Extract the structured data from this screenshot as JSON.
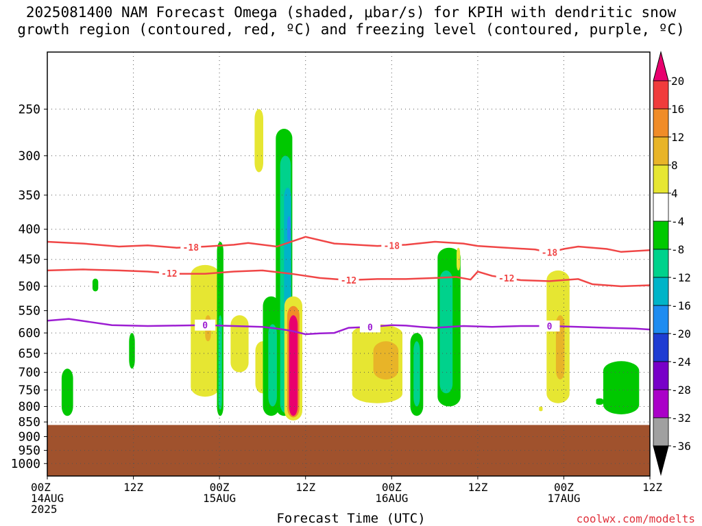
{
  "title_line1": "2025081400 NAM Forecast Omega (shaded, μbar/s) for KPIH with dendritic snow",
  "title_line2": "growth region (contoured, red, ºC) and freezing level (contoured, purple, ºC)",
  "credit": "coolwx.com/modelts",
  "chart_data": {
    "type": "time-height",
    "xlabel": "Forecast Time (UTC)",
    "x_ticks": [
      {
        "hour": 0,
        "l1": "00Z",
        "l2": "14AUG",
        "l3": "2025"
      },
      {
        "hour": 12,
        "l1": "12Z",
        "l2": "",
        "l3": ""
      },
      {
        "hour": 24,
        "l1": "00Z",
        "l2": "15AUG",
        "l3": ""
      },
      {
        "hour": 36,
        "l1": "12Z",
        "l2": "",
        "l3": ""
      },
      {
        "hour": 48,
        "l1": "00Z",
        "l2": "16AUG",
        "l3": ""
      },
      {
        "hour": 60,
        "l1": "12Z",
        "l2": "",
        "l3": ""
      },
      {
        "hour": 72,
        "l1": "00Z",
        "l2": "17AUG",
        "l3": ""
      },
      {
        "hour": 84,
        "l1": "12Z",
        "l2": "",
        "l3": ""
      }
    ],
    "xlim": [
      0,
      84
    ],
    "ylim": [
      1050,
      200
    ],
    "y_scale": "log",
    "y_ticks": [
      250,
      300,
      350,
      400,
      450,
      500,
      550,
      600,
      650,
      700,
      750,
      800,
      850,
      900,
      950,
      1000
    ],
    "grid": true,
    "ground_pressure": 860,
    "ground_color": "#a0522d",
    "colorbar": {
      "labels": [
        "20",
        "16",
        "12",
        "8",
        "4",
        "-4",
        "-8",
        "-12",
        "-16",
        "-20",
        "-24",
        "-28",
        "-32",
        "-36"
      ],
      "colors": [
        "#e8006e",
        "#f03c3c",
        "#f08c28",
        "#e8b428",
        "#e6e632",
        "#ffffff",
        "#00c800",
        "#00d28c",
        "#00b4c8",
        "#1e8cf0",
        "#1e3cd2",
        "#7800c8",
        "#aa00c8",
        "#a0a0a0",
        "#000000"
      ]
    },
    "contours": [
      {
        "label": "-18",
        "color": "#f04646",
        "points": [
          [
            0,
            420
          ],
          [
            5,
            423
          ],
          [
            10,
            428
          ],
          [
            14,
            426
          ],
          [
            18,
            430
          ],
          [
            22,
            428
          ],
          [
            26,
            425
          ],
          [
            28,
            422
          ],
          [
            32,
            428
          ],
          [
            36,
            412
          ],
          [
            40,
            423
          ],
          [
            46,
            427
          ],
          [
            50,
            425
          ],
          [
            54,
            420
          ],
          [
            58,
            423
          ],
          [
            60,
            427
          ],
          [
            64,
            430
          ],
          [
            68,
            433
          ],
          [
            70,
            438
          ],
          [
            72,
            432
          ],
          [
            74,
            428
          ],
          [
            78,
            432
          ],
          [
            80,
            437
          ],
          [
            84,
            434
          ]
        ],
        "label_hours": [
          20,
          48,
          70
        ]
      },
      {
        "label": "-12",
        "color": "#f04646",
        "points": [
          [
            0,
            470
          ],
          [
            5,
            468
          ],
          [
            10,
            470
          ],
          [
            14,
            472
          ],
          [
            18,
            476
          ],
          [
            22,
            476
          ],
          [
            26,
            472
          ],
          [
            30,
            470
          ],
          [
            34,
            476
          ],
          [
            38,
            484
          ],
          [
            42,
            488
          ],
          [
            46,
            486
          ],
          [
            50,
            486
          ],
          [
            54,
            484
          ],
          [
            57,
            482
          ],
          [
            59,
            487
          ],
          [
            60,
            472
          ],
          [
            62,
            480
          ],
          [
            66,
            488
          ],
          [
            70,
            490
          ],
          [
            74,
            486
          ],
          [
            76,
            496
          ],
          [
            80,
            500
          ],
          [
            84,
            498
          ]
        ],
        "label_hours": [
          17,
          42,
          64
        ]
      },
      {
        "label": "0",
        "color": "#9c1cd2",
        "points": [
          [
            0,
            572
          ],
          [
            3,
            568
          ],
          [
            6,
            575
          ],
          [
            9,
            582
          ],
          [
            14,
            584
          ],
          [
            18,
            583
          ],
          [
            22,
            582
          ],
          [
            26,
            584
          ],
          [
            30,
            586
          ],
          [
            32,
            590
          ],
          [
            34,
            595
          ],
          [
            36,
            603
          ],
          [
            38,
            601
          ],
          [
            40,
            600
          ],
          [
            42,
            588
          ],
          [
            45,
            586
          ],
          [
            48,
            582
          ],
          [
            50,
            583
          ],
          [
            52,
            586
          ],
          [
            54,
            588
          ],
          [
            58,
            584
          ],
          [
            62,
            586
          ],
          [
            66,
            584
          ],
          [
            70,
            584
          ],
          [
            74,
            586
          ],
          [
            78,
            588
          ],
          [
            82,
            590
          ],
          [
            84,
            592
          ]
        ],
        "label_hours": [
          22,
          45,
          70
        ]
      }
    ],
    "shaded_regions": [
      {
        "value": "4",
        "color": "#e6e632",
        "hour": 29.5,
        "p_top": 250,
        "p_bot": 320,
        "width_h": 1.2
      },
      {
        "value": "-8",
        "color": "#00c800",
        "hour": 33.0,
        "p_top": 270,
        "p_bot": 830,
        "width_h": 2.3
      },
      {
        "value": "-12",
        "color": "#00d28c",
        "hour": 33.2,
        "p_top": 300,
        "p_bot": 820,
        "width_h": 1.5
      },
      {
        "value": "-16",
        "color": "#00b4c8",
        "hour": 33.5,
        "p_top": 340,
        "p_bot": 560,
        "width_h": 1.0
      },
      {
        "value": "-20",
        "color": "#1e8cf0",
        "hour": 33.7,
        "p_top": 380,
        "p_bot": 420,
        "width_h": 0.5
      },
      {
        "value": "4",
        "color": "#e6e632",
        "hour": 34.3,
        "p_top": 520,
        "p_bot": 845,
        "width_h": 2.5
      },
      {
        "value": "12",
        "color": "#f08c28",
        "hour": 34.3,
        "p_top": 540,
        "p_bot": 835,
        "width_h": 1.7
      },
      {
        "value": "20",
        "color": "#e8006e",
        "hour": 34.3,
        "p_top": 560,
        "p_bot": 830,
        "width_h": 1.2
      },
      {
        "value": "4",
        "color": "#e6e632",
        "hour": 22.0,
        "p_top": 460,
        "p_bot": 770,
        "width_h": 4.0
      },
      {
        "value": "8",
        "color": "#e8b428",
        "hour": 22.4,
        "p_top": 560,
        "p_bot": 620,
        "width_h": 0.8
      },
      {
        "value": "-8",
        "color": "#00c800",
        "hour": 24.1,
        "p_top": 420,
        "p_bot": 830,
        "width_h": 0.9
      },
      {
        "value": "-12",
        "color": "#00d28c",
        "hour": 24.1,
        "p_top": 560,
        "p_bot": 810,
        "width_h": 0.5
      },
      {
        "value": "4",
        "color": "#e6e632",
        "hour": 26.8,
        "p_top": 560,
        "p_bot": 700,
        "width_h": 2.5
      },
      {
        "value": "4",
        "color": "#e6e632",
        "hour": 30.0,
        "p_top": 620,
        "p_bot": 760,
        "width_h": 2.0
      },
      {
        "value": "-8",
        "color": "#00c800",
        "hour": 31.2,
        "p_top": 520,
        "p_bot": 830,
        "width_h": 2.3
      },
      {
        "value": "-12",
        "color": "#00d28c",
        "hour": 31.4,
        "p_top": 580,
        "p_bot": 800,
        "width_h": 1.2
      },
      {
        "value": "4",
        "color": "#e6e632",
        "hour": 46.0,
        "p_top": 580,
        "p_bot": 790,
        "width_h": 7.0
      },
      {
        "value": "8",
        "color": "#e8b428",
        "hour": 47.2,
        "p_top": 620,
        "p_bot": 720,
        "width_h": 3.5
      },
      {
        "value": "-8",
        "color": "#00c800",
        "hour": 51.5,
        "p_top": 600,
        "p_bot": 830,
        "width_h": 1.8
      },
      {
        "value": "-12",
        "color": "#00d28c",
        "hour": 51.5,
        "p_top": 620,
        "p_bot": 800,
        "width_h": 0.9
      },
      {
        "value": "-8",
        "color": "#00c800",
        "hour": 56.0,
        "p_top": 430,
        "p_bot": 800,
        "width_h": 3.2
      },
      {
        "value": "-12",
        "color": "#00d28c",
        "hour": 55.6,
        "p_top": 470,
        "p_bot": 760,
        "width_h": 1.8
      },
      {
        "value": "4",
        "color": "#e6e632",
        "hour": 57.3,
        "p_top": 430,
        "p_bot": 470,
        "width_h": 0.5
      },
      {
        "value": "4",
        "color": "#e6e632",
        "hour": 71.2,
        "p_top": 470,
        "p_bot": 790,
        "width_h": 3.2
      },
      {
        "value": "8",
        "color": "#e8b428",
        "hour": 71.5,
        "p_top": 560,
        "p_bot": 720,
        "width_h": 1.2
      },
      {
        "value": "4",
        "color": "#e6e632",
        "hour": 68.8,
        "p_top": 800,
        "p_bot": 815,
        "width_h": 0.5
      },
      {
        "value": "-8",
        "color": "#00c800",
        "hour": 2.8,
        "p_top": 690,
        "p_bot": 830,
        "width_h": 1.6
      },
      {
        "value": "-8",
        "color": "#00c800",
        "hour": 6.7,
        "p_top": 485,
        "p_bot": 510,
        "width_h": 0.8
      },
      {
        "value": "-8",
        "color": "#00c800",
        "hour": 11.8,
        "p_top": 600,
        "p_bot": 690,
        "width_h": 0.8
      },
      {
        "value": "-8",
        "color": "#00c800",
        "hour": 80.0,
        "p_top": 670,
        "p_bot": 825,
        "width_h": 5.0
      },
      {
        "value": "-8",
        "color": "#00c800",
        "hour": 77.0,
        "p_top": 775,
        "p_bot": 795,
        "width_h": 1.0
      }
    ]
  }
}
